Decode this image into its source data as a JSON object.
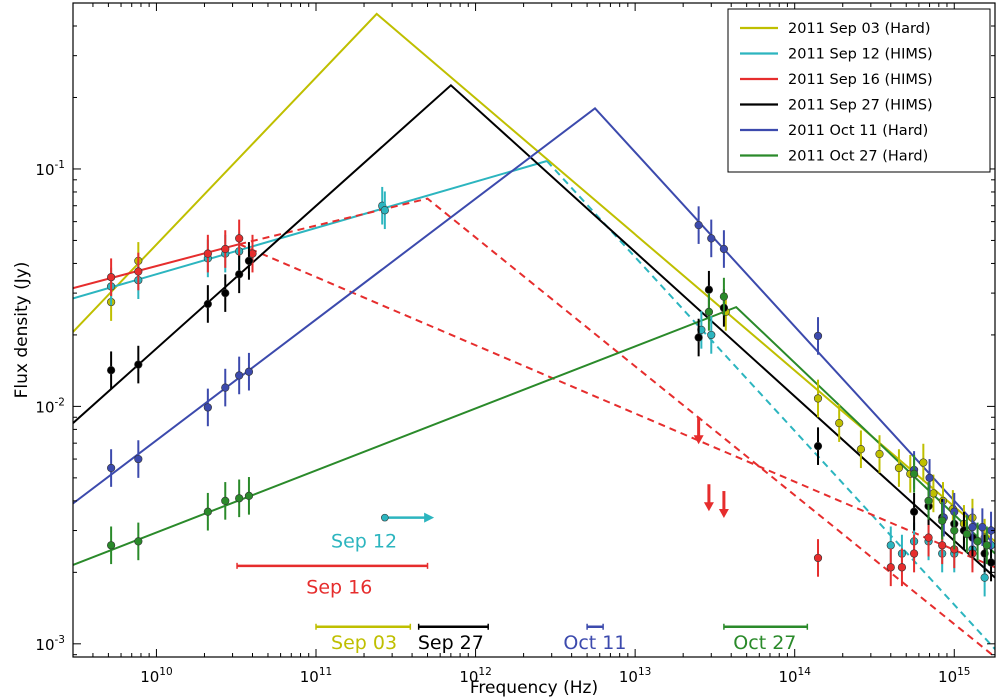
{
  "chart_data": {
    "type": "line",
    "title": "",
    "xlabel": "Frequency (Hz)",
    "ylabel": "Flux density (Jy)",
    "xscale": "log",
    "yscale": "log",
    "xlim": [
      3000000000.0,
      1800000000000000.0
    ],
    "ylim": [
      0.00088,
      0.5
    ],
    "x_ticks": [
      {
        "value": 10000000000.0,
        "base": "10",
        "exp": "10"
      },
      {
        "value": 100000000000.0,
        "base": "10",
        "exp": "11"
      },
      {
        "value": 1000000000000.0,
        "base": "10",
        "exp": "12"
      },
      {
        "value": 10000000000000.0,
        "base": "10",
        "exp": "13"
      },
      {
        "value": 100000000000000.0,
        "base": "10",
        "exp": "14"
      },
      {
        "value": 1000000000000000.0,
        "base": "10",
        "exp": "15"
      }
    ],
    "y_ticks": [
      {
        "value": 0.001,
        "base": "10",
        "exp": "-3"
      },
      {
        "value": 0.01,
        "base": "10",
        "exp": "-2"
      },
      {
        "value": 0.1,
        "base": "10",
        "exp": "-1"
      }
    ],
    "legend_position": "top-right",
    "series": [
      {
        "name": "2011 Sep 03 (Hard)",
        "color": "#bfbf00",
        "model": [
          [
            3000000000.0,
            0.0206
          ],
          [
            240000000000.0,
            0.45
          ],
          [
            1800000000000000.0,
            0.0027
          ]
        ],
        "points": [
          [
            5200000000.0,
            0.0275
          ],
          [
            7700000000.0,
            0.041
          ],
          [
            37000000000000.0,
            0.025
          ],
          [
            140000000000000.0,
            0.0108
          ],
          [
            190000000000000.0,
            0.0085
          ],
          [
            260000000000000.0,
            0.0066
          ],
          [
            340000000000000.0,
            0.0063
          ],
          [
            450000000000000.0,
            0.0055
          ],
          [
            530000000000000.0,
            0.0052
          ],
          [
            640000000000000.0,
            0.0058
          ],
          [
            740000000000000.0,
            0.0043
          ],
          [
            850000000000000.0,
            0.004
          ],
          [
            980000000000000.0,
            0.0037
          ],
          [
            1150000000000000.0,
            0.0032
          ],
          [
            1300000000000000.0,
            0.0034
          ],
          [
            1550000000000000.0,
            0.0028
          ]
        ]
      },
      {
        "name": "2011 Sep 12 (HIMS)",
        "color": "#2cb5bf",
        "model": [
          [
            3000000000.0,
            0.0285
          ],
          [
            2800000000000.0,
            0.108
          ]
        ],
        "model_dashed": [
          [
            2800000000000.0,
            0.108
          ],
          [
            1800000000000000.0,
            0.00095
          ]
        ],
        "points": [
          [
            5200000000.0,
            0.032
          ],
          [
            7700000000.0,
            0.034
          ],
          [
            21000000000.0,
            0.042
          ],
          [
            27000000000.0,
            0.044
          ],
          [
            33000000000.0,
            0.045
          ],
          [
            260000000000.0,
            0.07
          ],
          [
            270000000000.0,
            0.067
          ],
          [
            26000000000000.0,
            0.021
          ],
          [
            30000000000000.0,
            0.02
          ],
          [
            400000000000000.0,
            0.0026
          ],
          [
            470000000000000.0,
            0.0024
          ],
          [
            560000000000000.0,
            0.0027
          ],
          [
            690000000000000.0,
            0.0027
          ],
          [
            840000000000000.0,
            0.0024
          ],
          [
            1000000000000000.0,
            0.0024
          ],
          [
            1300000000000000.0,
            0.0025
          ],
          [
            1550000000000000.0,
            0.0019
          ],
          [
            1700000000000000.0,
            0.0026
          ]
        ]
      },
      {
        "name": "2011 Sep 16 (HIMS)",
        "color": "#e62d2d",
        "model": [
          [
            3000000000.0,
            0.0315
          ],
          [
            33000000000.0,
            0.0482
          ]
        ],
        "model_dashed": [
          [
            33000000000.0,
            0.0482
          ],
          [
            500000000000.0,
            0.075
          ],
          [
            1800000000000000.0,
            0.00088
          ]
        ],
        "model_dashed2": [
          [
            33000000000.0,
            0.0482
          ],
          [
            1800000000000000.0,
            0.0021
          ]
        ],
        "points": [
          [
            5200000000.0,
            0.035
          ],
          [
            7700000000.0,
            0.037
          ],
          [
            21000000000.0,
            0.044
          ],
          [
            27000000000.0,
            0.046
          ],
          [
            33000000000.0,
            0.051
          ],
          [
            40000000000.0,
            0.044
          ],
          [
            140000000000000.0,
            0.0023
          ],
          [
            400000000000000.0,
            0.0021
          ],
          [
            470000000000000.0,
            0.0021
          ],
          [
            560000000000000.0,
            0.0024
          ],
          [
            690000000000000.0,
            0.0028
          ],
          [
            840000000000000.0,
            0.0026
          ],
          [
            1000000000000000.0,
            0.0025
          ],
          [
            1300000000000000.0,
            0.0024
          ]
        ],
        "upper_limits": [
          [
            25000000000000.0,
            0.009
          ],
          [
            29000000000000.0,
            0.0047
          ],
          [
            36000000000000.0,
            0.0044
          ]
        ]
      },
      {
        "name": "2011 Sep 27 (HIMS)",
        "color": "#000000",
        "model": [
          [
            3000000000.0,
            0.0085
          ],
          [
            700000000000.0,
            0.225
          ],
          [
            1800000000000000.0,
            0.0019
          ]
        ],
        "points": [
          [
            5200000000.0,
            0.0142
          ],
          [
            7700000000.0,
            0.015
          ],
          [
            21000000000.0,
            0.027
          ],
          [
            27000000000.0,
            0.03
          ],
          [
            33000000000.0,
            0.036
          ],
          [
            38000000000.0,
            0.041
          ],
          [
            25000000000000.0,
            0.0195
          ],
          [
            29000000000000.0,
            0.031
          ],
          [
            36000000000000.0,
            0.026
          ],
          [
            140000000000000.0,
            0.0068
          ],
          [
            560000000000000.0,
            0.0036
          ],
          [
            690000000000000.0,
            0.0038
          ],
          [
            840000000000000.0,
            0.0034
          ],
          [
            1000000000000000.0,
            0.0032
          ],
          [
            1150000000000000.0,
            0.003
          ],
          [
            1300000000000000.0,
            0.0028
          ],
          [
            1550000000000000.0,
            0.0024
          ],
          [
            1700000000000000.0,
            0.0022
          ]
        ]
      },
      {
        "name": "2011 Oct 11 (Hard)",
        "color": "#3c4aad",
        "model": [
          [
            3000000000.0,
            0.0039
          ],
          [
            5600000000000.0,
            0.18
          ],
          [
            1800000000000000.0,
            0.0026
          ]
        ],
        "points": [
          [
            5200000000.0,
            0.0055
          ],
          [
            7700000000.0,
            0.006
          ],
          [
            21000000000.0,
            0.0099
          ],
          [
            27000000000.0,
            0.012
          ],
          [
            33000000000.0,
            0.0135
          ],
          [
            38000000000.0,
            0.014
          ],
          [
            25000000000000.0,
            0.058
          ],
          [
            30000000000000.0,
            0.051
          ],
          [
            36000000000000.0,
            0.046
          ],
          [
            140000000000000.0,
            0.0198
          ],
          [
            560000000000000.0,
            0.0054
          ],
          [
            700000000000000.0,
            0.005
          ],
          [
            860000000000000.0,
            0.0034
          ],
          [
            1000000000000000.0,
            0.0036
          ],
          [
            1300000000000000.0,
            0.0031
          ],
          [
            1500000000000000.0,
            0.0031
          ],
          [
            1700000000000000.0,
            0.003
          ]
        ]
      },
      {
        "name": "2011 Oct 27 (Hard)",
        "color": "#2a8a2a",
        "model": [
          [
            3000000000.0,
            0.00215
          ],
          [
            43000000000000.0,
            0.0262
          ],
          [
            1800000000000000.0,
            0.0024
          ]
        ],
        "points": [
          [
            5200000000.0,
            0.0026
          ],
          [
            7700000000.0,
            0.0027
          ],
          [
            21000000000.0,
            0.0036
          ],
          [
            27000000000.0,
            0.004
          ],
          [
            33000000000.0,
            0.0041
          ],
          [
            38000000000.0,
            0.0042
          ],
          [
            29000000000000.0,
            0.025
          ],
          [
            36000000000000.0,
            0.029
          ],
          [
            560000000000000.0,
            0.0052
          ],
          [
            690000000000000.0,
            0.004
          ],
          [
            840000000000000.0,
            0.0033
          ],
          [
            1000000000000000.0,
            0.003
          ],
          [
            1200000000000000.0,
            0.0029
          ],
          [
            1400000000000000.0,
            0.0027
          ],
          [
            1600000000000000.0,
            0.0026
          ]
        ]
      }
    ],
    "annotations": [
      {
        "label": "Sep 12",
        "color": "#2cb5bf",
        "type": "arrow",
        "x_start": 270000000000.0,
        "x_end": 550000000000.0,
        "y": 0.0034,
        "label_x": 200000000000.0,
        "label_y": 0.00255
      },
      {
        "label": "Sep 16",
        "color": "#e62d2d",
        "type": "range",
        "x_start": 32000000000.0,
        "x_end": 500000000000.0,
        "y": 0.00213,
        "label_x": 140000000000.0,
        "label_y": 0.00163
      },
      {
        "label": "Sep 03",
        "color": "#bfbf00",
        "type": "range",
        "x_start": 100000000000.0,
        "x_end": 390000000000.0,
        "y": 0.00118,
        "label_x": 200000000000.0,
        "label_y": 0.00095
      },
      {
        "label": "Sep 27",
        "color": "#000000",
        "type": "range",
        "x_start": 440000000000.0,
        "x_end": 1200000000000.0,
        "y": 0.00118,
        "label_x": 700000000000.0,
        "label_y": 0.00095
      },
      {
        "label": "Oct 11",
        "color": "#3c4aad",
        "type": "range",
        "x_start": 5000000000000.0,
        "x_end": 6300000000000.0,
        "y": 0.00118,
        "label_x": 5600000000000.0,
        "label_y": 0.00095
      },
      {
        "label": "Oct 27",
        "color": "#2a8a2a",
        "type": "range",
        "x_start": 36000000000000.0,
        "x_end": 120000000000000.0,
        "y": 0.00118,
        "label_x": 65000000000000.0,
        "label_y": 0.00095
      }
    ]
  }
}
